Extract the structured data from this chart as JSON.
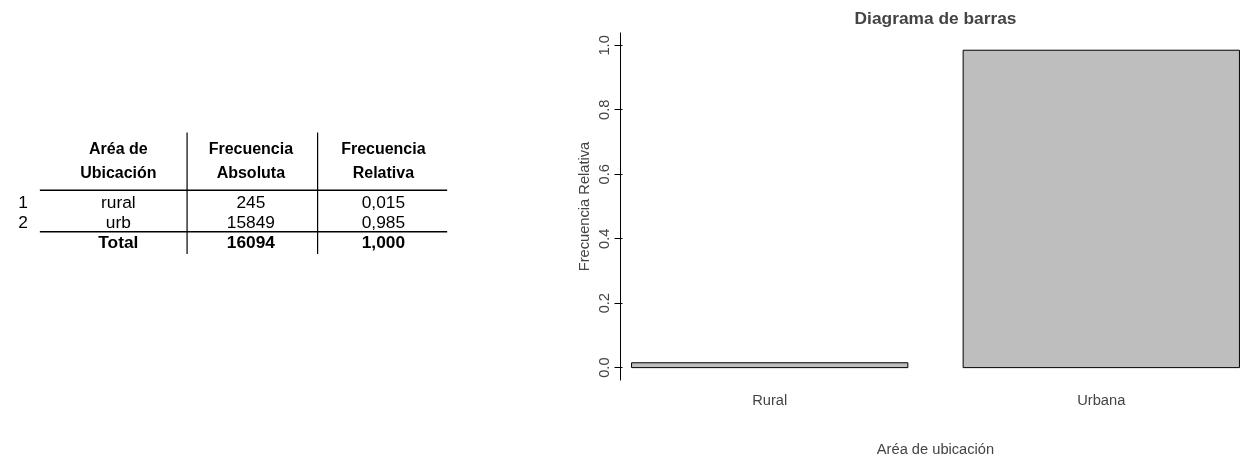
{
  "chart_data": [
    {
      "type": "other",
      "categories": [
        null,
        "Aréa de Ubicación",
        "Frecuencia Absoluta",
        "Frecuencia Relativa"
      ],
      "y_categories": [
        "1",
        "2",
        null
      ],
      "cell_labels": [
        [
          "rural",
          "245",
          "0,015"
        ],
        [
          "urb",
          "15849",
          "0,985"
        ],
        [
          "Total",
          "16094",
          "1,000"
        ]
      ]
    },
    {
      "type": "bar",
      "title": "Diagrama de barras",
      "xlabel": "Aréa de ubicación",
      "ylabel": "Frecuencia Relativa",
      "categories": [
        "Rural",
        "Urbana"
      ],
      "values": [
        0.015,
        0.985
      ],
      "color": "#bebebe",
      "ylim": [
        -0.04,
        1.04
      ],
      "yticks": [
        {
          "value": 0,
          "label": "0.0"
        },
        0.2,
        0.4,
        0.6,
        0.8,
        {
          "value": 1,
          "label": "1.0"
        }
      ],
      "grid": false
    }
  ]
}
